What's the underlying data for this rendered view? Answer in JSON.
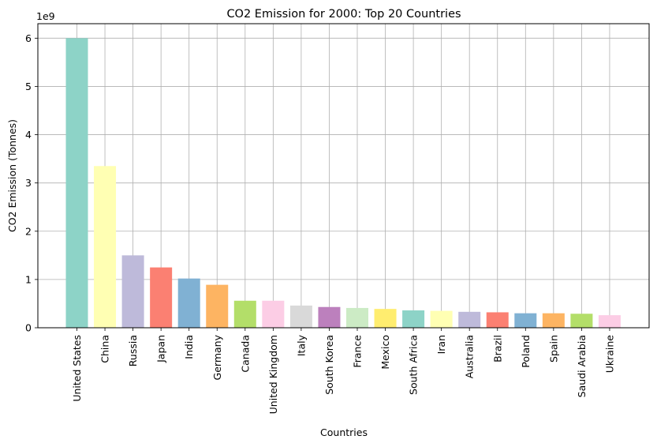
{
  "chart_data": {
    "type": "bar",
    "title": "CO2 Emission for 2000: Top 20 Countries",
    "xlabel": "Countries",
    "ylabel": "CO2 Emission (Tonnes)",
    "offset_label": "1e9",
    "ylim": [
      0,
      6.3
    ],
    "yticks": [
      "0",
      "1",
      "2",
      "3",
      "4",
      "5",
      "6"
    ],
    "grid": true,
    "categories": [
      "United States",
      "China",
      "Russia",
      "Japan",
      "India",
      "Germany",
      "Canada",
      "United Kingdom",
      "Italy",
      "South Korea",
      "France",
      "Mexico",
      "South Africa",
      "Iran",
      "Australia",
      "Brazil",
      "Poland",
      "Spain",
      "Saudi Arabia",
      "Ukraine"
    ],
    "values": [
      6.0,
      3.35,
      1.5,
      1.25,
      1.02,
      0.89,
      0.56,
      0.56,
      0.46,
      0.43,
      0.41,
      0.39,
      0.36,
      0.35,
      0.33,
      0.32,
      0.3,
      0.3,
      0.29,
      0.26
    ],
    "unit_multiplier": 1000000000,
    "colors": [
      "#8dd3c7",
      "#ffffb3",
      "#bebada",
      "#fb8072",
      "#80b1d3",
      "#fdb462",
      "#b3de69",
      "#fccde5",
      "#d9d9d9",
      "#bc80bd",
      "#ccebc5",
      "#ffed6f",
      "#8dd3c7",
      "#ffffb3",
      "#bebada",
      "#fb8072",
      "#80b1d3",
      "#fdb462",
      "#b3de69",
      "#fccde5"
    ]
  }
}
